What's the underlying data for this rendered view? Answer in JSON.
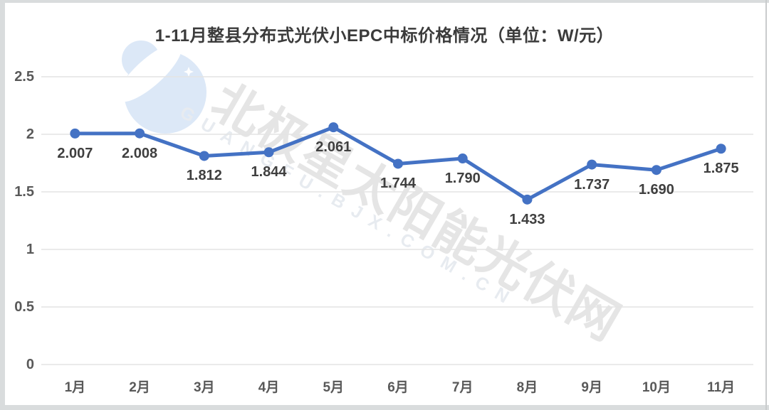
{
  "title": "1-11月整县分布式光伏小EPC中标价格情况（单位：W/元）",
  "watermark": {
    "cn": "北极星太阳能光伏网",
    "en": "GUANGFU.BJX.COM.CN"
  },
  "colors": {
    "series_line": "#4472c4",
    "grid": "#e4e4e4",
    "axis_text": "#595959",
    "data_label_text": "#3f3f3f",
    "title_text": "#3b3b3b",
    "watermark_cn": "#e5e5e5",
    "watermark_en": "#e7ebf0",
    "logo_blue": "#dce8f7"
  },
  "chart_data": {
    "type": "line",
    "title": "1-11月整县分布式光伏小EPC中标价格情况（单位：W/元）",
    "categories": [
      "1月",
      "2月",
      "3月",
      "4月",
      "5月",
      "6月",
      "7月",
      "8月",
      "9月",
      "10月",
      "11月"
    ],
    "values": [
      2.007,
      2.008,
      1.812,
      1.844,
      2.061,
      1.744,
      1.79,
      1.433,
      1.737,
      1.69,
      1.875
    ],
    "data_labels": [
      "2.007",
      "2.008",
      "1.812",
      "1.844",
      "2.061",
      "1.744",
      "1.790",
      "1.433",
      "1.737",
      "1.690",
      "1.875"
    ],
    "xlabel": "",
    "ylabel": "",
    "ylim": [
      0,
      2.5
    ],
    "y_ticks": [
      "0",
      "0.5",
      "1",
      "1.5",
      "2",
      "2.5"
    ],
    "grid": true,
    "legend_position": "none",
    "marker": "circle"
  }
}
